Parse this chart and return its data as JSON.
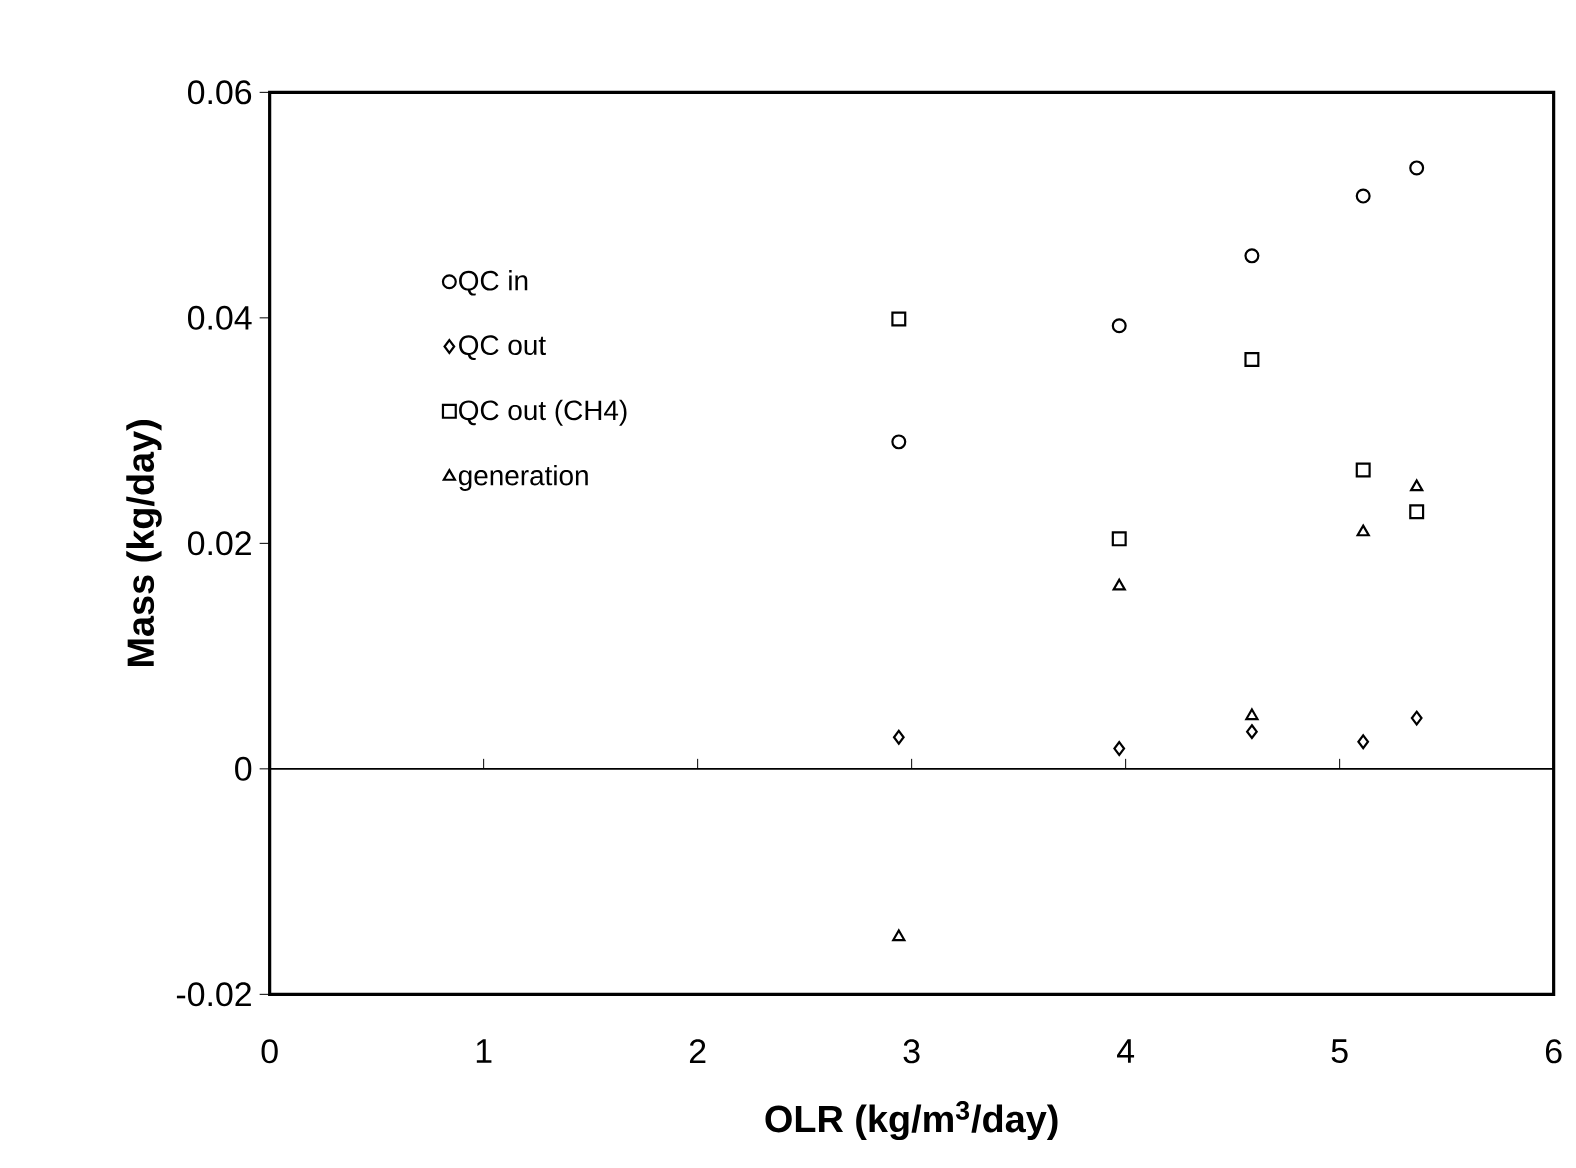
{
  "chart_data": {
    "type": "scatter",
    "xlabel": "OLR (kg/m$^{3}$/day)",
    "ylabel": "Mass (kg/day)",
    "x": [
      2.94,
      3.97,
      4.59,
      5.11,
      5.36
    ],
    "series": [
      {
        "name": "QC in",
        "color": "#000000",
        "marker": "circle",
        "values": [
          0.029,
          0.0393,
          0.0455,
          0.0508,
          0.0533
        ]
      },
      {
        "name": "QC out",
        "color": "#000000",
        "marker": "diamond",
        "values": [
          0.0028,
          0.0018,
          0.0033,
          0.0024,
          0.0045
        ]
      },
      {
        "name": "QC out (CH4)",
        "color": "#000000",
        "marker": "square",
        "values": [
          0.0399,
          0.0204,
          0.0363,
          0.0265,
          0.0228
        ]
      },
      {
        "name": "generation",
        "color": "#000000",
        "marker": "triangle",
        "values": [
          -0.0149,
          0.0162,
          0.0047,
          0.021,
          0.025
        ]
      }
    ],
    "xlim": [
      0,
      6
    ],
    "xticks": [
      0,
      1,
      2,
      3,
      4,
      5,
      6
    ],
    "ylim": [
      -0.02,
      0.06
    ],
    "yticks": [
      -0.02,
      0,
      0.02,
      0.04,
      0.06
    ],
    "ref_lines": [
      {
        "axis": "y",
        "value": 0
      }
    ],
    "grid": false,
    "legend": "top left"
  }
}
